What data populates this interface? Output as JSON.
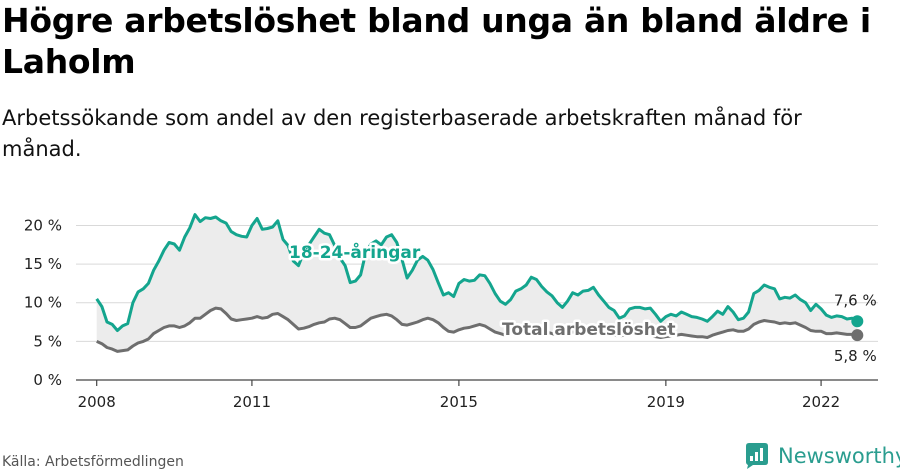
{
  "title": "Högre arbetslöshet bland unga än bland äldre i Laholm",
  "subtitle": "Arbetssökande som andel av den registerbaserade arbetskraften månad för månad.",
  "source": "Källa: Arbetsförmedlingen",
  "brand": "Newsworthy",
  "colors": {
    "youth": "#14a58e",
    "total": "#6e6e6e",
    "band": "#ececec",
    "brand": "#2a9d8f"
  },
  "chart_data": {
    "type": "line",
    "xlim": [
      2007.6,
      2023.1
    ],
    "ylim": [
      0,
      22
    ],
    "x_ticks": [
      {
        "value": 2008,
        "label": "2008"
      },
      {
        "value": 2011,
        "label": "2011"
      },
      {
        "value": 2015,
        "label": "2015"
      },
      {
        "value": 2019,
        "label": "2019"
      },
      {
        "value": 2022,
        "label": "2022"
      }
    ],
    "y_ticks": [
      {
        "value": 0,
        "label": "0 %"
      },
      {
        "value": 5,
        "label": "5 %"
      },
      {
        "value": 10,
        "label": "10 %"
      },
      {
        "value": 15,
        "label": "15 %"
      },
      {
        "value": 20,
        "label": "20 %"
      }
    ],
    "grid": true,
    "series": [
      {
        "name": "18-24-åringar",
        "end_label": "7,6 %",
        "points": [
          [
            2008.0,
            10.5
          ],
          [
            2008.1,
            9.5
          ],
          [
            2008.2,
            7.5
          ],
          [
            2008.3,
            7.2
          ],
          [
            2008.4,
            6.4
          ],
          [
            2008.5,
            7.0
          ],
          [
            2008.6,
            7.3
          ],
          [
            2008.7,
            10.0
          ],
          [
            2008.8,
            11.4
          ],
          [
            2008.9,
            11.8
          ],
          [
            2009.0,
            12.5
          ],
          [
            2009.1,
            14.2
          ],
          [
            2009.2,
            15.4
          ],
          [
            2009.3,
            16.8
          ],
          [
            2009.4,
            17.8
          ],
          [
            2009.5,
            17.6
          ],
          [
            2009.6,
            16.8
          ],
          [
            2009.7,
            18.5
          ],
          [
            2009.8,
            19.7
          ],
          [
            2009.9,
            21.4
          ],
          [
            2010.0,
            20.5
          ],
          [
            2010.1,
            21.0
          ],
          [
            2010.2,
            20.9
          ],
          [
            2010.3,
            21.1
          ],
          [
            2010.4,
            20.6
          ],
          [
            2010.5,
            20.3
          ],
          [
            2010.6,
            19.2
          ],
          [
            2010.7,
            18.8
          ],
          [
            2010.8,
            18.6
          ],
          [
            2010.9,
            18.5
          ],
          [
            2011.0,
            20.0
          ],
          [
            2011.1,
            20.9
          ],
          [
            2011.2,
            19.5
          ],
          [
            2011.3,
            19.6
          ],
          [
            2011.4,
            19.8
          ],
          [
            2011.5,
            20.6
          ],
          [
            2011.6,
            18.2
          ],
          [
            2011.7,
            17.4
          ],
          [
            2011.8,
            15.4
          ],
          [
            2011.9,
            14.8
          ],
          [
            2012.0,
            16.5
          ],
          [
            2012.1,
            17.5
          ],
          [
            2012.2,
            18.5
          ],
          [
            2012.3,
            19.5
          ],
          [
            2012.4,
            19.0
          ],
          [
            2012.5,
            18.8
          ],
          [
            2012.6,
            17.4
          ],
          [
            2012.7,
            15.8
          ],
          [
            2012.8,
            14.8
          ],
          [
            2012.9,
            12.6
          ],
          [
            2013.0,
            12.8
          ],
          [
            2013.1,
            13.6
          ],
          [
            2013.2,
            16.5
          ],
          [
            2013.3,
            17.6
          ],
          [
            2013.4,
            18.0
          ],
          [
            2013.5,
            17.5
          ],
          [
            2013.6,
            18.5
          ],
          [
            2013.7,
            18.8
          ],
          [
            2013.8,
            17.8
          ],
          [
            2013.9,
            15.6
          ],
          [
            2014.0,
            13.2
          ],
          [
            2014.1,
            14.2
          ],
          [
            2014.2,
            15.5
          ],
          [
            2014.3,
            16.0
          ],
          [
            2014.4,
            15.5
          ],
          [
            2014.5,
            14.3
          ],
          [
            2014.6,
            12.6
          ],
          [
            2014.7,
            11.0
          ],
          [
            2014.8,
            11.3
          ],
          [
            2014.9,
            10.8
          ],
          [
            2015.0,
            12.5
          ],
          [
            2015.1,
            13.0
          ],
          [
            2015.2,
            12.8
          ],
          [
            2015.3,
            12.9
          ],
          [
            2015.4,
            13.6
          ],
          [
            2015.5,
            13.5
          ],
          [
            2015.6,
            12.5
          ],
          [
            2015.7,
            11.2
          ],
          [
            2015.8,
            10.2
          ],
          [
            2015.9,
            9.8
          ],
          [
            2016.0,
            10.4
          ],
          [
            2016.1,
            11.5
          ],
          [
            2016.2,
            11.8
          ],
          [
            2016.3,
            12.3
          ],
          [
            2016.4,
            13.3
          ],
          [
            2016.5,
            13.0
          ],
          [
            2016.6,
            12.1
          ],
          [
            2016.7,
            11.4
          ],
          [
            2016.8,
            10.9
          ],
          [
            2016.9,
            10.0
          ],
          [
            2017.0,
            9.4
          ],
          [
            2017.1,
            10.2
          ],
          [
            2017.2,
            11.3
          ],
          [
            2017.3,
            11.0
          ],
          [
            2017.4,
            11.5
          ],
          [
            2017.5,
            11.6
          ],
          [
            2017.6,
            12.0
          ],
          [
            2017.7,
            11.0
          ],
          [
            2017.8,
            10.2
          ],
          [
            2017.9,
            9.4
          ],
          [
            2018.0,
            9.0
          ],
          [
            2018.1,
            8.0
          ],
          [
            2018.2,
            8.3
          ],
          [
            2018.3,
            9.2
          ],
          [
            2018.4,
            9.4
          ],
          [
            2018.5,
            9.4
          ],
          [
            2018.6,
            9.2
          ],
          [
            2018.7,
            9.3
          ],
          [
            2018.8,
            8.5
          ],
          [
            2018.9,
            7.6
          ],
          [
            2019.0,
            8.2
          ],
          [
            2019.1,
            8.5
          ],
          [
            2019.2,
            8.3
          ],
          [
            2019.3,
            8.8
          ],
          [
            2019.4,
            8.5
          ],
          [
            2019.5,
            8.2
          ],
          [
            2019.6,
            8.1
          ],
          [
            2019.7,
            7.9
          ],
          [
            2019.8,
            7.6
          ],
          [
            2019.9,
            8.2
          ],
          [
            2020.0,
            8.9
          ],
          [
            2020.1,
            8.5
          ],
          [
            2020.2,
            9.5
          ],
          [
            2020.3,
            8.8
          ],
          [
            2020.4,
            7.8
          ],
          [
            2020.5,
            8.0
          ],
          [
            2020.6,
            8.8
          ],
          [
            2020.7,
            11.2
          ],
          [
            2020.8,
            11.6
          ],
          [
            2020.9,
            12.3
          ],
          [
            2021.0,
            12.0
          ],
          [
            2021.1,
            11.8
          ],
          [
            2021.2,
            10.5
          ],
          [
            2021.3,
            10.7
          ],
          [
            2021.4,
            10.6
          ],
          [
            2021.5,
            11.0
          ],
          [
            2021.6,
            10.4
          ],
          [
            2021.7,
            10.0
          ],
          [
            2021.8,
            9.0
          ],
          [
            2021.9,
            9.8
          ],
          [
            2022.0,
            9.2
          ],
          [
            2022.1,
            8.4
          ],
          [
            2022.2,
            8.1
          ],
          [
            2022.3,
            8.3
          ],
          [
            2022.4,
            8.2
          ],
          [
            2022.5,
            7.9
          ],
          [
            2022.6,
            8.0
          ],
          [
            2022.7,
            7.6
          ]
        ]
      },
      {
        "name": "Total arbetslöshet",
        "end_label": "5,8 %",
        "points": [
          [
            2008.0,
            5.0
          ],
          [
            2008.1,
            4.7
          ],
          [
            2008.2,
            4.2
          ],
          [
            2008.3,
            4.0
          ],
          [
            2008.4,
            3.7
          ],
          [
            2008.5,
            3.8
          ],
          [
            2008.6,
            3.9
          ],
          [
            2008.7,
            4.4
          ],
          [
            2008.8,
            4.8
          ],
          [
            2008.9,
            5.0
          ],
          [
            2009.0,
            5.3
          ],
          [
            2009.1,
            6.0
          ],
          [
            2009.2,
            6.4
          ],
          [
            2009.3,
            6.8
          ],
          [
            2009.4,
            7.0
          ],
          [
            2009.5,
            7.0
          ],
          [
            2009.6,
            6.8
          ],
          [
            2009.7,
            7.0
          ],
          [
            2009.8,
            7.4
          ],
          [
            2009.9,
            8.0
          ],
          [
            2010.0,
            8.0
          ],
          [
            2010.1,
            8.5
          ],
          [
            2010.2,
            9.0
          ],
          [
            2010.3,
            9.3
          ],
          [
            2010.4,
            9.2
          ],
          [
            2010.5,
            8.6
          ],
          [
            2010.6,
            7.9
          ],
          [
            2010.7,
            7.7
          ],
          [
            2010.8,
            7.8
          ],
          [
            2010.9,
            7.9
          ],
          [
            2011.0,
            8.0
          ],
          [
            2011.1,
            8.2
          ],
          [
            2011.2,
            8.0
          ],
          [
            2011.3,
            8.1
          ],
          [
            2011.4,
            8.5
          ],
          [
            2011.5,
            8.6
          ],
          [
            2011.6,
            8.2
          ],
          [
            2011.7,
            7.8
          ],
          [
            2011.8,
            7.2
          ],
          [
            2011.9,
            6.6
          ],
          [
            2012.0,
            6.7
          ],
          [
            2012.1,
            6.9
          ],
          [
            2012.2,
            7.2
          ],
          [
            2012.3,
            7.4
          ],
          [
            2012.4,
            7.5
          ],
          [
            2012.5,
            7.9
          ],
          [
            2012.6,
            8.0
          ],
          [
            2012.7,
            7.8
          ],
          [
            2012.8,
            7.3
          ],
          [
            2012.9,
            6.8
          ],
          [
            2013.0,
            6.8
          ],
          [
            2013.1,
            7.0
          ],
          [
            2013.2,
            7.5
          ],
          [
            2013.3,
            8.0
          ],
          [
            2013.4,
            8.2
          ],
          [
            2013.5,
            8.4
          ],
          [
            2013.6,
            8.5
          ],
          [
            2013.7,
            8.3
          ],
          [
            2013.8,
            7.8
          ],
          [
            2013.9,
            7.2
          ],
          [
            2014.0,
            7.1
          ],
          [
            2014.1,
            7.3
          ],
          [
            2014.2,
            7.5
          ],
          [
            2014.3,
            7.8
          ],
          [
            2014.4,
            8.0
          ],
          [
            2014.5,
            7.8
          ],
          [
            2014.6,
            7.4
          ],
          [
            2014.7,
            6.8
          ],
          [
            2014.8,
            6.3
          ],
          [
            2014.9,
            6.2
          ],
          [
            2015.0,
            6.5
          ],
          [
            2015.1,
            6.7
          ],
          [
            2015.2,
            6.8
          ],
          [
            2015.3,
            7.0
          ],
          [
            2015.4,
            7.2
          ],
          [
            2015.5,
            7.0
          ],
          [
            2015.6,
            6.6
          ],
          [
            2015.7,
            6.2
          ],
          [
            2015.8,
            6.0
          ],
          [
            2015.9,
            5.8
          ],
          [
            2016.0,
            6.0
          ],
          [
            2016.1,
            6.2
          ],
          [
            2016.2,
            6.4
          ],
          [
            2016.3,
            6.5
          ],
          [
            2016.4,
            6.6
          ],
          [
            2016.5,
            6.5
          ],
          [
            2016.6,
            6.4
          ],
          [
            2016.7,
            6.2
          ],
          [
            2016.8,
            6.0
          ],
          [
            2016.9,
            5.8
          ],
          [
            2017.0,
            5.8
          ],
          [
            2017.1,
            6.0
          ],
          [
            2017.2,
            6.2
          ],
          [
            2017.3,
            6.3
          ],
          [
            2017.4,
            6.4
          ],
          [
            2017.5,
            6.5
          ],
          [
            2017.6,
            6.4
          ],
          [
            2017.7,
            6.2
          ],
          [
            2017.8,
            6.0
          ],
          [
            2017.9,
            5.9
          ],
          [
            2018.0,
            5.8
          ],
          [
            2018.1,
            5.7
          ],
          [
            2018.2,
            5.8
          ],
          [
            2018.3,
            5.9
          ],
          [
            2018.4,
            6.0
          ],
          [
            2018.5,
            6.0
          ],
          [
            2018.6,
            5.9
          ],
          [
            2018.7,
            5.8
          ],
          [
            2018.8,
            5.6
          ],
          [
            2018.9,
            5.5
          ],
          [
            2019.0,
            5.6
          ],
          [
            2019.1,
            5.7
          ],
          [
            2019.2,
            5.8
          ],
          [
            2019.3,
            5.9
          ],
          [
            2019.4,
            5.8
          ],
          [
            2019.5,
            5.7
          ],
          [
            2019.6,
            5.6
          ],
          [
            2019.7,
            5.6
          ],
          [
            2019.8,
            5.5
          ],
          [
            2019.9,
            5.8
          ],
          [
            2020.0,
            6.0
          ],
          [
            2020.1,
            6.2
          ],
          [
            2020.2,
            6.4
          ],
          [
            2020.3,
            6.5
          ],
          [
            2020.4,
            6.3
          ],
          [
            2020.5,
            6.3
          ],
          [
            2020.6,
            6.6
          ],
          [
            2020.7,
            7.2
          ],
          [
            2020.8,
            7.5
          ],
          [
            2020.9,
            7.7
          ],
          [
            2021.0,
            7.6
          ],
          [
            2021.1,
            7.5
          ],
          [
            2021.2,
            7.3
          ],
          [
            2021.3,
            7.4
          ],
          [
            2021.4,
            7.3
          ],
          [
            2021.5,
            7.4
          ],
          [
            2021.6,
            7.1
          ],
          [
            2021.7,
            6.8
          ],
          [
            2021.8,
            6.4
          ],
          [
            2021.9,
            6.3
          ],
          [
            2022.0,
            6.3
          ],
          [
            2022.1,
            6.0
          ],
          [
            2022.2,
            6.0
          ],
          [
            2022.3,
            6.1
          ],
          [
            2022.4,
            6.0
          ],
          [
            2022.5,
            5.9
          ],
          [
            2022.6,
            5.9
          ],
          [
            2022.7,
            5.8
          ]
        ]
      }
    ]
  }
}
